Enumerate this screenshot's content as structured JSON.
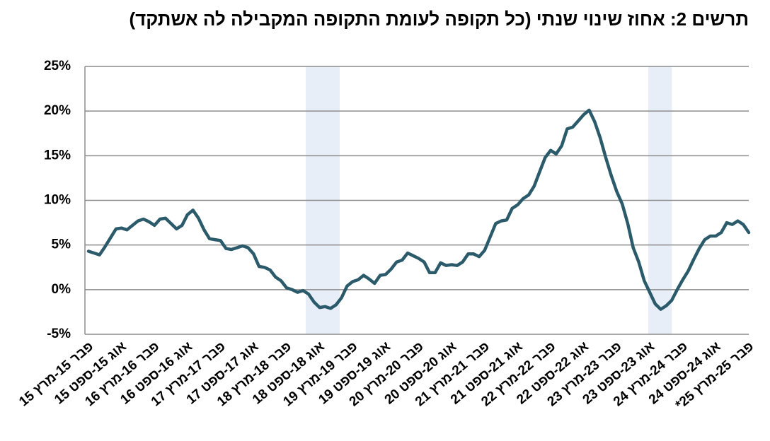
{
  "chart_data": {
    "type": "line",
    "title": "תרשים 2: אחוז שינוי שנתי (כל תקופה לעומת התקופה המקבילה לה אשתקד)",
    "categories": [
      "פבר 15-מרץ 15",
      null,
      null,
      null,
      null,
      null,
      "אוג 15-ספט 15",
      null,
      null,
      null,
      null,
      null,
      "פבר 16-מרץ 16",
      null,
      null,
      null,
      null,
      null,
      "אוג 16-ספט 16",
      null,
      null,
      null,
      null,
      null,
      "פבר 17-מרץ 17",
      null,
      null,
      null,
      null,
      null,
      "אוג 17-ספט 17",
      null,
      null,
      null,
      null,
      null,
      "פבר 18-מרץ 18",
      null,
      null,
      null,
      null,
      null,
      "אוג 18-ספט 18",
      null,
      null,
      null,
      null,
      null,
      "פבר 19-מרץ 19",
      null,
      null,
      null,
      null,
      null,
      "אוג 19-ספט 19",
      null,
      null,
      null,
      null,
      null,
      "פבר 20-מרץ 20",
      null,
      null,
      null,
      null,
      null,
      "אוג 20-ספט 20",
      null,
      null,
      null,
      null,
      null,
      "פבר 21-מרץ 21",
      null,
      null,
      null,
      null,
      null,
      "אוג 21-ספט 21",
      null,
      null,
      null,
      null,
      null,
      "פבר 22-מרץ 22",
      null,
      null,
      null,
      null,
      null,
      "אוג 22-ספט 22",
      null,
      null,
      null,
      null,
      null,
      "פבר 23-מרץ 23",
      null,
      null,
      null,
      null,
      null,
      "אוג 23-ספט 23",
      null,
      null,
      null,
      null,
      null,
      "פבר 24-מרץ 24",
      null,
      null,
      null,
      null,
      null,
      "אוג 24-ספט 24",
      null,
      null,
      null,
      null,
      null,
      "פבר 25-מרץ 25*"
    ],
    "values": [
      4.3,
      4.1,
      3.9,
      4.8,
      5.8,
      6.8,
      6.9,
      6.7,
      7.2,
      7.7,
      7.9,
      7.6,
      7.2,
      7.9,
      8.0,
      7.4,
      6.8,
      7.2,
      8.4,
      8.9,
      8.0,
      6.7,
      5.7,
      5.6,
      5.5,
      4.6,
      4.5,
      4.7,
      4.9,
      4.7,
      4.0,
      2.6,
      2.5,
      2.2,
      1.4,
      1.0,
      0.2,
      0,
      -0.3,
      -0.1,
      -0.5,
      -1.4,
      -2.0,
      -1.9,
      -2.1,
      -1.7,
      -0.9,
      0.4,
      0.9,
      1.1,
      1.6,
      1.2,
      0.7,
      1.6,
      1.7,
      2.3,
      3.1,
      3.3,
      4.1,
      3.8,
      3.5,
      3.1,
      1.9,
      1.9,
      3.0,
      2.7,
      2.8,
      2.7,
      3.1,
      4.0,
      4.0,
      3.7,
      4.4,
      5.9,
      7.4,
      7.7,
      7.8,
      9.1,
      9.5,
      10.2,
      10.6,
      11.6,
      13.2,
      14.8,
      15.6,
      15.2,
      16.1,
      18.0,
      18.2,
      18.9,
      19.6,
      20.1,
      18.8,
      17.0,
      14.8,
      12.8,
      11.0,
      9.6,
      7.4,
      4.7,
      3.1,
      1.0,
      -0.3,
      -1.6,
      -2.2,
      -1.8,
      -1.2,
      0.0,
      1.1,
      2.1,
      3.4,
      4.6,
      5.6,
      6.0,
      6.0,
      6.4,
      7.5,
      7.3,
      7.7,
      7.3,
      6.4
    ],
    "color": "#2b5b6b",
    "ylim": [
      -5,
      25
    ],
    "yticks": [
      {
        "value": -5,
        "label": "-5%"
      },
      {
        "value": 0,
        "label": "0%"
      },
      {
        "value": 5,
        "label": "5%"
      },
      {
        "value": 10,
        "label": "10%"
      },
      {
        "value": 15,
        "label": "15%"
      },
      {
        "value": 20,
        "label": "20%"
      },
      {
        "value": 25,
        "label": "25%"
      }
    ],
    "grid": true
  }
}
